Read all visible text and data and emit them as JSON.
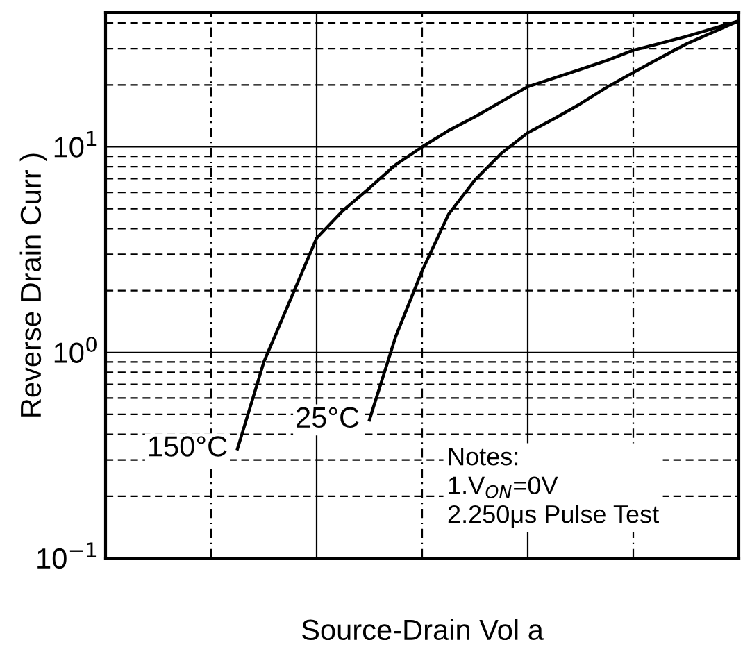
{
  "chart_data": {
    "type": "line",
    "xlabel": "Source-Drain Vol a",
    "ylabel": "Reverse Drain Curr )",
    "categories": [
      null,
      null,
      null,
      null,
      null,
      null,
      null,
      null,
      null,
      null,
      null,
      null,
      null,
      null,
      null,
      null,
      null,
      null,
      null,
      null,
      null,
      null,
      null,
      null,
      null
    ],
    "series": [
      {
        "name": "150°C",
        "color": "#000000",
        "values": [
          null,
          null,
          null,
          null,
          null,
          0.34,
          0.9,
          1.8,
          3.6,
          4.9,
          6.3,
          8.2,
          10,
          12,
          14,
          16.6,
          19.6,
          21.6,
          23.8,
          26.3,
          29.5,
          31.8,
          34.4,
          37.5,
          41
        ]
      },
      {
        "name": "25°C",
        "color": "#000000",
        "values": [
          null,
          null,
          null,
          null,
          null,
          null,
          null,
          null,
          null,
          null,
          0.47,
          1.2,
          2.5,
          4.7,
          6.9,
          9.3,
          11.7,
          13.7,
          16.2,
          19.5,
          23,
          27,
          31.6,
          36,
          41
        ]
      }
    ],
    "log": "y",
    "ylim": [
      0.1,
      45
    ],
    "yticks": [
      {
        "value": 0.1,
        "label": "10$^{−1}$"
      },
      {
        "value": 1,
        "label": "10$^{0}$"
      },
      {
        "value": 10,
        "label": "10$^{1}$"
      }
    ],
    "grid": true,
    "tick_labels": "y",
    "marker": "none",
    "line_style": "solid",
    "annotations": [
      "Notes:\n1.V$_{ON}$=0V\n2.250μs Pulse Test"
    ]
  }
}
